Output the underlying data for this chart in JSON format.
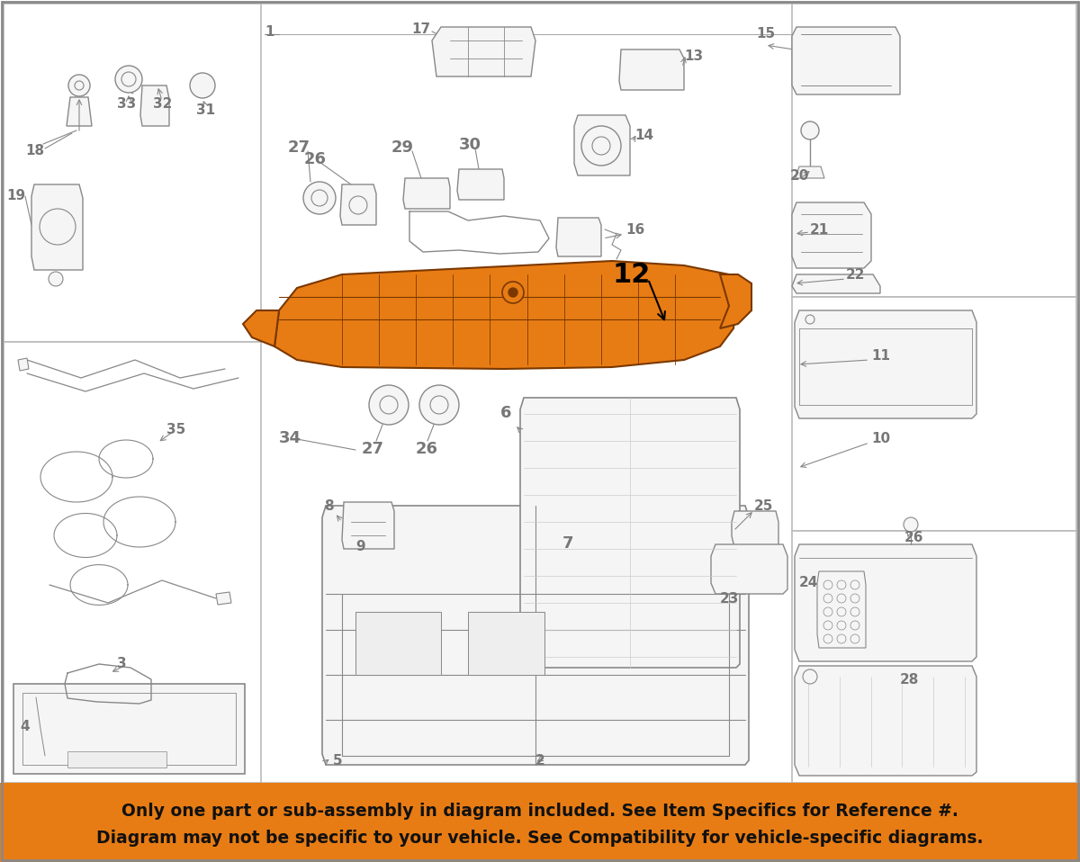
{
  "bg": "#ffffff",
  "banner_color": "#E87C14",
  "banner_text1": "Only one part or sub-assembly in diagram included. See Item Specifics for Reference #.",
  "banner_text2": "Diagram may not be specific to your vehicle. See Compatibility for vehicle-specific diagrams.",
  "banner_text_color": "#111111",
  "line_color": "#888888",
  "dark_line": "#555555",
  "orange": "#E87C14",
  "dark_orange": "#7a3800",
  "label_color": "#777777",
  "label_bold_color": "#000000",
  "fig_w": 12.0,
  "fig_h": 9.58,
  "dpi": 100
}
